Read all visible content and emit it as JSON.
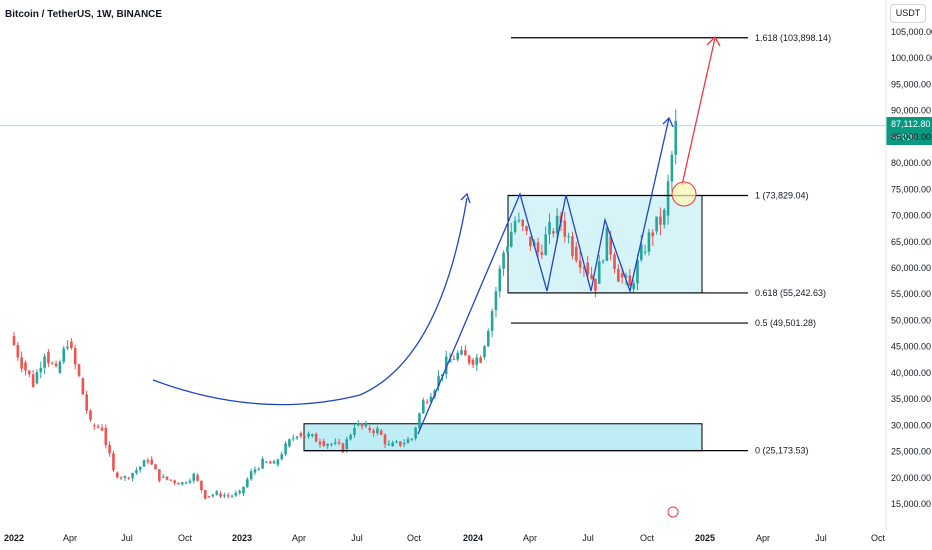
{
  "header": {
    "title": "Bitcoin / TetherUS, 1W, BINANCE"
  },
  "currency": {
    "label": "USDT"
  },
  "price_tag": {
    "price": "87,112.80",
    "countdown": "5d 22h"
  },
  "colors": {
    "up": "#26a69a",
    "down": "#ef5350",
    "arrow_blue": "#1f45c9",
    "arrow_red": "#f23645",
    "zone_fill": "#aee8f2",
    "current_price": "#089981"
  },
  "chart_data": {
    "type": "candlestick",
    "title": "Bitcoin / TetherUS, 1W, BINANCE",
    "y_ticks": [
      "105,000.00",
      "100,000.00",
      "95,000.00",
      "90,000.00",
      "85,000.00",
      "80,000.00",
      "75,000.00",
      "70,000.00",
      "65,000.00",
      "60,000.00",
      "55,000.00",
      "50,000.00",
      "45,000.00",
      "40,000.00",
      "35,000.00",
      "30,000.00",
      "25,000.00",
      "20,000.00",
      "15,000.00"
    ],
    "x_ticks": [
      "2022",
      "Apr",
      "Jul",
      "Oct",
      "2023",
      "Apr",
      "Jul",
      "Oct",
      "2024",
      "Apr",
      "Jul",
      "Oct",
      "2025",
      "Apr",
      "Jul",
      "Oct"
    ],
    "x_ticks_bold": [
      "2022",
      "2023",
      "2024",
      "2025"
    ],
    "current_price": 87112.8,
    "fib_levels": [
      {
        "label": "1.618 (103,898.14)",
        "value": 103898.14
      },
      {
        "label": "1 (73,829.04)",
        "value": 73829.04
      },
      {
        "label": "0.618 (55,242.63)",
        "value": 55242.63
      },
      {
        "label": "0.5 (49,501.28)",
        "value": 49501.28
      },
      {
        "label": "0 (25,173.53)",
        "value": 25173.53
      }
    ],
    "price_path_closes": [
      [
        2022.0,
        47000
      ],
      [
        2022.05,
        42000
      ],
      [
        2022.1,
        38000
      ],
      [
        2022.15,
        44000
      ],
      [
        2022.2,
        40000
      ],
      [
        2022.25,
        46000
      ],
      [
        2022.3,
        39000
      ],
      [
        2022.35,
        30000
      ],
      [
        2022.4,
        29500
      ],
      [
        2022.45,
        21000
      ],
      [
        2022.5,
        20000
      ],
      [
        2022.55,
        21500
      ],
      [
        2022.6,
        23500
      ],
      [
        2022.65,
        20000
      ],
      [
        2022.7,
        19500
      ],
      [
        2022.75,
        19000
      ],
      [
        2022.8,
        20500
      ],
      [
        2022.85,
        16500
      ],
      [
        2022.9,
        17000
      ],
      [
        2022.95,
        16500
      ],
      [
        2023.0,
        17000
      ],
      [
        2023.05,
        21000
      ],
      [
        2023.1,
        23000
      ],
      [
        2023.15,
        22500
      ],
      [
        2023.2,
        26000
      ],
      [
        2023.25,
        28500
      ],
      [
        2023.3,
        28000
      ],
      [
        2023.35,
        27000
      ],
      [
        2023.4,
        26500
      ],
      [
        2023.45,
        25500
      ],
      [
        2023.5,
        30000
      ],
      [
        2023.55,
        29500
      ],
      [
        2023.6,
        29000
      ],
      [
        2023.65,
        26000
      ],
      [
        2023.7,
        26500
      ],
      [
        2023.75,
        27500
      ],
      [
        2023.8,
        34500
      ],
      [
        2023.85,
        37500
      ],
      [
        2023.9,
        42000
      ],
      [
        2023.95,
        43500
      ],
      [
        2024.0,
        42500
      ],
      [
        2024.05,
        43000
      ],
      [
        2024.1,
        52000
      ],
      [
        2024.15,
        63000
      ],
      [
        2024.2,
        69000
      ],
      [
        2024.25,
        66000
      ],
      [
        2024.3,
        63000
      ],
      [
        2024.35,
        67000
      ],
      [
        2024.4,
        69000
      ],
      [
        2024.45,
        64000
      ],
      [
        2024.5,
        61000
      ],
      [
        2024.55,
        57000
      ],
      [
        2024.6,
        66000
      ],
      [
        2024.65,
        59000
      ],
      [
        2024.7,
        56000
      ],
      [
        2024.75,
        63000
      ],
      [
        2024.8,
        67000
      ],
      [
        2024.85,
        70000
      ],
      [
        2024.9,
        87000
      ]
    ]
  }
}
